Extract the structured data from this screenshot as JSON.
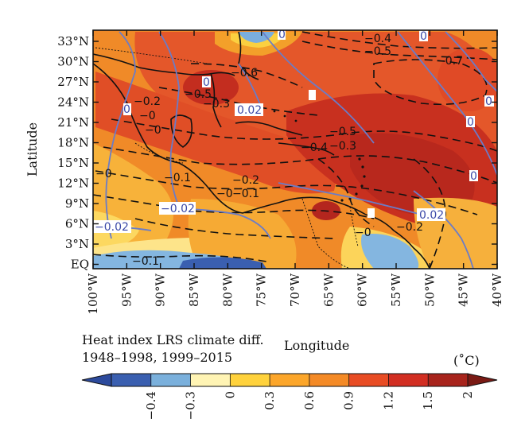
{
  "axes": {
    "ylabel": "Latitude",
    "xlabel": "Longitude",
    "lat_ticks": [
      "33°N",
      "30°N",
      "27°N",
      "24°N",
      "21°N",
      "18°N",
      "15°N",
      "12°N",
      "9°N",
      "6°N",
      "3°N",
      "EQ"
    ],
    "lon_ticks": [
      "100°W",
      "95°W",
      "90°W",
      "85°W",
      "80°W",
      "75°W",
      "70°W",
      "65°W",
      "60°W",
      "55°W",
      "50°W",
      "45°W",
      "40°W"
    ]
  },
  "caption": {
    "line1": "Heat index LRS climate diff.",
    "line2": "1948–1998, 1999–2015",
    "unit": "(˚C)"
  },
  "colorbar": {
    "labels": [
      "−0.4",
      "−0.3",
      "0",
      "0.3",
      "0.6",
      "0.9",
      "1.2",
      "1.5",
      "2"
    ],
    "colors": [
      "#3a5fb0",
      "#7ab0dc",
      "#fff4b4",
      "#ffd23c",
      "#fca62a",
      "#f48a26",
      "#e84c24",
      "#d22e22",
      "#a8241c"
    ]
  },
  "contour_labels": {
    "black": [
      "−0.4",
      "−0.5",
      "−0.6",
      "−0.7",
      "−0.5",
      "−0.3",
      "−0.2",
      "−0",
      "−0.5",
      "−0.4",
      "−0.3",
      "−0",
      "−0.2",
      "−0.1",
      "−0",
      "−0.1",
      "−0",
      "−0.2",
      "−0",
      "−0.1"
    ],
    "blue": [
      "0",
      "0",
      "0",
      "0",
      "0.02",
      "0",
      "0",
      "0",
      "−0.02",
      "0.02",
      "−0.02"
    ]
  }
}
